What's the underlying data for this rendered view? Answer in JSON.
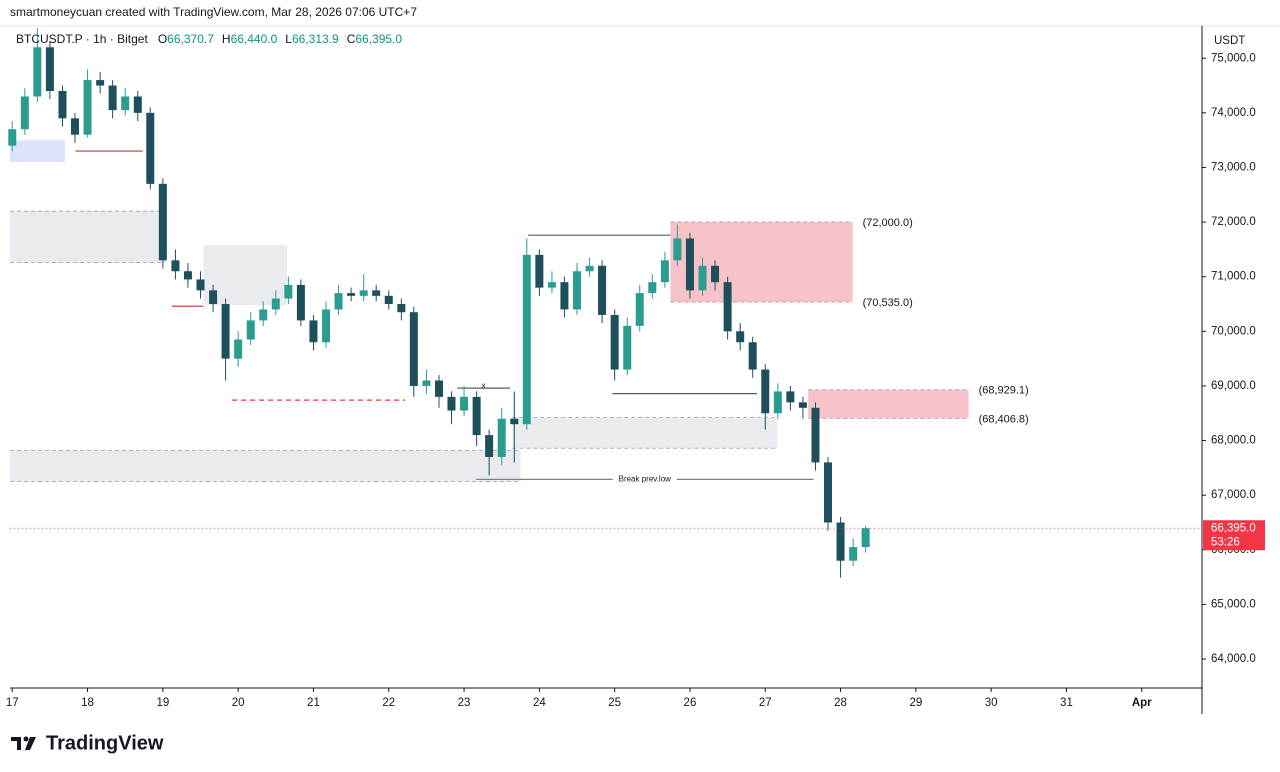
{
  "header": {
    "attribution": "smartmoneycuan created with TradingView.com, Mar 28, 2026 07:06 UTC+7",
    "symbol": "BTCUSDT.P · 1h · Bitget",
    "ohlc": [
      {
        "prefix": "O",
        "text": "66,370.7"
      },
      {
        "prefix": "H",
        "text": "66,440.0"
      },
      {
        "prefix": "L",
        "text": "66,313.9"
      },
      {
        "prefix": "C",
        "text": "66,395.0"
      }
    ]
  },
  "footer": {
    "logo": "TradingView"
  },
  "chart_data": {
    "type": "candlestick",
    "currency": "USDT",
    "up_color": "#2a9d8f",
    "down_color": "#1e4f5c",
    "xlim": [
      16.97,
      32.8
    ],
    "ylim": [
      63470,
      75590
    ],
    "xticks": [
      {
        "value": 17,
        "label": "17"
      },
      18,
      19,
      20,
      21,
      22,
      23,
      24,
      25,
      26,
      27,
      28,
      29,
      30,
      31,
      {
        "value": 32,
        "label": "Apr"
      }
    ],
    "yticks": [
      {
        "value": 64000,
        "label": "64,000.0"
      },
      {
        "value": 65000,
        "label": "65,000.0"
      },
      {
        "value": 66000,
        "label": "66,000.0"
      },
      {
        "value": 67000,
        "label": "67,000.0"
      },
      {
        "value": 68000,
        "label": "68,000.0"
      },
      {
        "value": 69000,
        "label": "69,000.0"
      },
      {
        "value": 70000,
        "label": "70,000.0"
      },
      {
        "value": 71000,
        "label": "71,000.0"
      },
      {
        "value": 72000,
        "label": "72,000.0"
      },
      {
        "value": 73000,
        "label": "73,000.0"
      },
      {
        "value": 74000,
        "label": "74,000.0"
      },
      {
        "value": 75000,
        "label": "75,000.0"
      }
    ],
    "x": [
      17,
      17.167,
      17.333,
      17.5,
      17.667,
      17.833,
      18,
      18.167,
      18.333,
      18.5,
      18.667,
      18.833,
      19,
      19.167,
      19.333,
      19.5,
      19.667,
      19.833,
      20,
      20.167,
      20.333,
      20.5,
      20.667,
      20.833,
      21,
      21.167,
      21.333,
      21.5,
      21.667,
      21.833,
      22,
      22.167,
      22.333,
      22.5,
      22.667,
      22.833,
      23,
      23.167,
      23.333,
      23.5,
      23.667,
      23.833,
      24,
      24.167,
      24.333,
      24.5,
      24.667,
      24.833,
      25,
      25.167,
      25.333,
      25.5,
      25.667,
      25.833,
      26,
      26.167,
      26.333,
      26.5,
      26.667,
      26.833,
      27,
      27.167,
      27.333,
      27.5,
      27.667,
      27.833,
      28,
      28.167,
      28.333
    ],
    "open": [
      73400,
      73700,
      74300,
      75200,
      74400,
      73900,
      73600,
      74600,
      74500,
      74050,
      74300,
      74000,
      72700,
      71300,
      71100,
      70950,
      70750,
      70500,
      69500,
      69850,
      70200,
      70400,
      70600,
      70850,
      70200,
      69800,
      70400,
      70700,
      70650,
      70750,
      70650,
      70500,
      70350,
      69000,
      69100,
      68800,
      68550,
      68800,
      68100,
      67700,
      68400,
      68300,
      71400,
      70800,
      70900,
      70400,
      71100,
      71200,
      70300,
      69300,
      70100,
      70700,
      70900,
      71300,
      71700,
      70750,
      71200,
      70900,
      70000,
      69800,
      69300,
      68500,
      68900,
      68700,
      68600,
      67600,
      66500,
      65800,
      66050
    ],
    "high": [
      73850,
      74450,
      75550,
      75300,
      74500,
      74000,
      74800,
      74750,
      74600,
      74450,
      74400,
      74100,
      72800,
      71500,
      71250,
      71100,
      70850,
      70600,
      70000,
      70350,
      70550,
      70750,
      71000,
      70950,
      70300,
      70550,
      70850,
      70800,
      71050,
      70850,
      70750,
      70600,
      70450,
      69300,
      69200,
      68900,
      69000,
      68900,
      68200,
      68600,
      68900,
      71700,
      71500,
      71100,
      71000,
      71250,
      71350,
      71300,
      70400,
      70250,
      70850,
      71050,
      71450,
      71950,
      71800,
      71350,
      71300,
      71000,
      70150,
      69900,
      69400,
      69050,
      69000,
      68800,
      68700,
      67700,
      66600,
      66200,
      66440
    ],
    "low": [
      73300,
      73600,
      74200,
      74250,
      73750,
      73450,
      73550,
      74350,
      73900,
      73950,
      73850,
      72600,
      71150,
      70950,
      70800,
      70600,
      70350,
      69100,
      69350,
      69750,
      70100,
      70300,
      70500,
      70100,
      69650,
      69700,
      70300,
      70550,
      70550,
      70550,
      70400,
      70200,
      68800,
      68850,
      68600,
      68300,
      68450,
      67900,
      67360,
      67550,
      67600,
      68200,
      70650,
      70700,
      70250,
      70300,
      71000,
      70150,
      69100,
      69200,
      70000,
      70600,
      70800,
      71200,
      70600,
      70650,
      70750,
      69850,
      69650,
      69150,
      68200,
      68400,
      68550,
      68400,
      67450,
      66350,
      65490,
      65700,
      65950
    ],
    "close": [
      73700,
      74300,
      75200,
      74400,
      73900,
      73600,
      74600,
      74500,
      74050,
      74300,
      74000,
      72700,
      71300,
      71100,
      70950,
      70750,
      70500,
      69500,
      69850,
      70200,
      70400,
      70600,
      70850,
      70200,
      69800,
      70400,
      70700,
      70650,
      70750,
      70650,
      70500,
      70350,
      69000,
      69100,
      68800,
      68550,
      68800,
      68100,
      67700,
      68400,
      68300,
      71400,
      70800,
      70900,
      70400,
      71100,
      71200,
      70300,
      69300,
      70100,
      70700,
      70900,
      71300,
      71700,
      70750,
      71200,
      70900,
      70000,
      69800,
      69300,
      68500,
      68900,
      68700,
      68600,
      67600,
      66500,
      65800,
      66050,
      66395
    ],
    "last_price": {
      "value": 66395,
      "label": "66,395.0"
    },
    "countdown": "53:26",
    "zones": [
      {
        "x": [
          16.97,
          17.7
        ],
        "y": [
          73100,
          73500
        ],
        "color": "#dbe4fb",
        "dashed": false
      },
      {
        "x": [
          16.97,
          19.03
        ],
        "y": [
          71260,
          72200
        ],
        "color": "#e9ebee",
        "dashed": true
      },
      {
        "x": [
          19.54,
          20.65
        ],
        "y": [
          70480,
          71580
        ],
        "color": "#e9ebee",
        "dashed": false
      },
      {
        "x": [
          16.97,
          23.75
        ],
        "y": [
          67250,
          67820
        ],
        "color": "#e9ebee",
        "dashed": true
      },
      {
        "x": [
          23.64,
          27.16
        ],
        "y": [
          67860,
          68420
        ],
        "color": "#e9ebee",
        "dashed": true
      },
      {
        "x": [
          25.74,
          28.16
        ],
        "y": [
          70535,
          72000
        ],
        "color": "#f8c2c9",
        "dashed": true,
        "value_labels": [
          "(70,535.0)",
          "(72,000.0)"
        ]
      },
      {
        "x": [
          27.57,
          29.7
        ],
        "y": [
          68406.8,
          68929.1
        ],
        "color": "#f8c2c9",
        "dashed": true,
        "value_labels": [
          "(68,406.8)",
          "(68,929.1)"
        ]
      }
    ],
    "lines": [
      {
        "x": [
          17.84,
          18.73
        ],
        "y": 73300,
        "color": "#d32f2f",
        "dashed": false
      },
      {
        "x": [
          19.12,
          19.54
        ],
        "y": 70460,
        "color": "#d32f2f",
        "dashed": false
      },
      {
        "x": [
          19.92,
          22.22
        ],
        "y": 68740,
        "color": "#e53935",
        "dashed": true
      },
      {
        "x": [
          22.91,
          23.61
        ],
        "y": 68960,
        "color": "#555b66",
        "dashed": false,
        "label": "x"
      },
      {
        "x": [
          23.85,
          25.74
        ],
        "y": 71760,
        "color": "#4a6068",
        "dashed": false
      },
      {
        "x": [
          24.97,
          26.89
        ],
        "y": 68860,
        "color": "#4a6068",
        "dashed": false
      },
      {
        "x": [
          23.16,
          27.64
        ],
        "y": 67290,
        "color": "#7a8088",
        "dashed": false,
        "label": "Break prev.low"
      }
    ]
  }
}
